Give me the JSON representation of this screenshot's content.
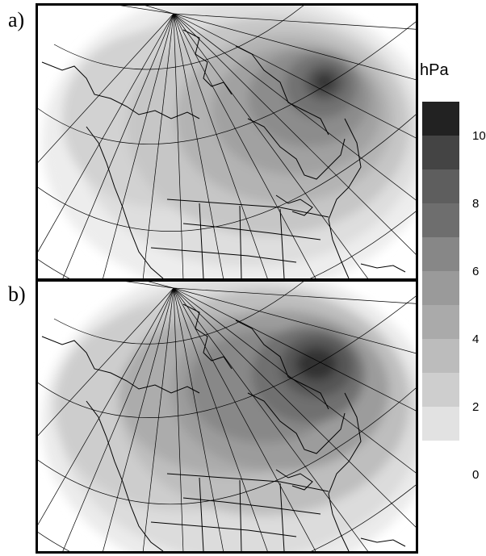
{
  "panels": [
    {
      "label": "a)"
    },
    {
      "label": "b)"
    }
  ],
  "colorbar": {
    "unit": "hPa",
    "levels": [
      0,
      1,
      2,
      3,
      4,
      5,
      6,
      7,
      8,
      9,
      10,
      11
    ],
    "tick_labels": [
      "10",
      "8",
      "6",
      "4",
      "2",
      "0"
    ],
    "colors": [
      "#222222",
      "#444444",
      "#5e5e5e",
      "#6e6e6e",
      "#878787",
      "#9a9a9a",
      "#aaaaaa",
      "#bcbcbc",
      "#cecece",
      "#e2e2e2",
      "#ffffff"
    ]
  }
}
